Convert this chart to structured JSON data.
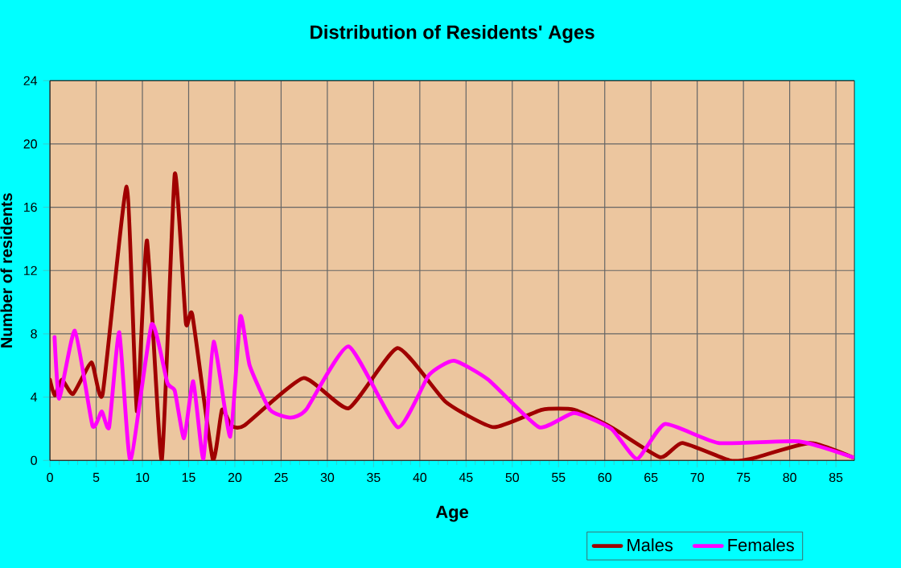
{
  "chart_data": {
    "type": "line",
    "title": "Distribution of Residents' Ages",
    "xlabel": "Age",
    "ylabel": "Number of residents",
    "xlim": [
      0,
      87
    ],
    "xticks": [
      0,
      5,
      10,
      15,
      20,
      25,
      30,
      35,
      40,
      45,
      50,
      55,
      60,
      65,
      70,
      75,
      80,
      85
    ],
    "ylim": [
      0,
      24
    ],
    "yticks": [
      0,
      4,
      8,
      12,
      16,
      20,
      24
    ],
    "grid": true,
    "legend": "bottom right",
    "series": [
      {
        "name": "Males",
        "color": "#a00000",
        "x": [
          0,
          0.5,
          1.3,
          2.5,
          4.5,
          5.7,
          8.3,
          9.4,
          10.5,
          12.1,
          13.5,
          14.7,
          15.4,
          17.6,
          18.6,
          19.6,
          21,
          27.4,
          32.3,
          37.6,
          42.8,
          48,
          53.2,
          56.7,
          60.7,
          66,
          68.4,
          73.5,
          75.8,
          82.2,
          86.8
        ],
        "values": [
          5.1,
          4.1,
          5.1,
          4.2,
          6.2,
          4.2,
          17.3,
          3.1,
          13.9,
          0,
          18.1,
          8.7,
          9.2,
          0.1,
          3.2,
          2.2,
          2.2,
          5.2,
          3.3,
          7.1,
          3.7,
          2.1,
          3.2,
          3.2,
          2.1,
          0.2,
          1.1,
          0,
          0.1,
          1.1,
          0.2
        ]
      },
      {
        "name": "Females",
        "color": "#ff00ff",
        "x": [
          0.5,
          1,
          2.7,
          4.6,
          5.6,
          6.4,
          7.5,
          8.7,
          11,
          12.7,
          13.5,
          14.5,
          15.5,
          16.6,
          17.7,
          19.5,
          20.6,
          21.6,
          23.8,
          26,
          27.7,
          32.3,
          37.6,
          41,
          43.7,
          47.4,
          52.9,
          56.7,
          60.7,
          63.5,
          66.5,
          72.3,
          81,
          86.8
        ],
        "values": [
          7.8,
          3.9,
          8.2,
          2.2,
          3.1,
          2.1,
          8.1,
          0,
          8.6,
          4.9,
          4.4,
          1.4,
          5.0,
          0.1,
          7.5,
          1.5,
          9.1,
          6.0,
          3.2,
          2.7,
          3.2,
          7.2,
          2.1,
          5.4,
          6.3,
          5.1,
          2.1,
          3.0,
          2.0,
          0.1,
          2.3,
          1.1,
          1.2,
          0.2
        ]
      }
    ]
  }
}
